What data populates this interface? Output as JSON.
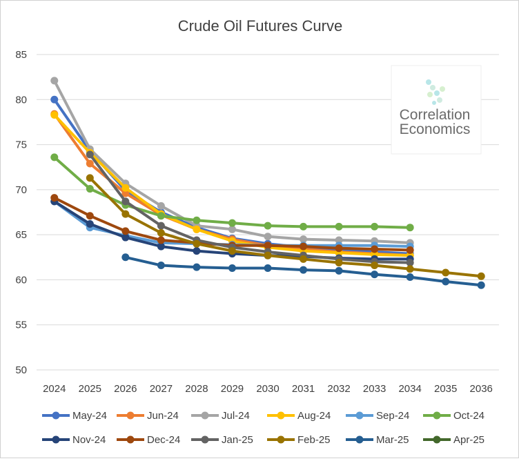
{
  "chart_data": {
    "type": "line",
    "title": "Crude Oil Futures Curve",
    "xlabel": "",
    "ylabel": "",
    "x": [
      2024,
      2025,
      2026,
      2027,
      2028,
      2029,
      2030,
      2031,
      2032,
      2033,
      2034,
      2035,
      2036
    ],
    "x_tick_labels": [
      "2024",
      "2025",
      "2026",
      "2027",
      "2028",
      "2029",
      "2030",
      "2031",
      "2032",
      "2033",
      "2034",
      "2035",
      "2036"
    ],
    "ylim": [
      50,
      85
    ],
    "y_ticks": [
      50,
      55,
      60,
      65,
      70,
      75,
      80,
      85
    ],
    "y_tick_labels": [
      "50",
      "55",
      "60",
      "65",
      "70",
      "75",
      "80",
      "85"
    ],
    "grid": "horizontal",
    "legend_position": "bottom",
    "series": [
      {
        "name": "May-24",
        "color": "#4472C4",
        "values": [
          80.0,
          74.3,
          69.9,
          67.5,
          65.8,
          64.6,
          64.0,
          63.6,
          63.3,
          63.1,
          62.9,
          null,
          null
        ]
      },
      {
        "name": "Jun-24",
        "color": "#ED7D31",
        "values": [
          78.4,
          72.9,
          69.6,
          67.2,
          65.6,
          64.5,
          63.8,
          63.4,
          63.1,
          62.9,
          62.7,
          null,
          null
        ]
      },
      {
        "name": "Jul-24",
        "color": "#A5A5A5",
        "values": [
          82.1,
          74.5,
          70.7,
          68.2,
          66.0,
          65.6,
          64.8,
          64.5,
          64.4,
          64.3,
          64.1,
          null,
          null
        ]
      },
      {
        "name": "Aug-24",
        "color": "#FFC000",
        "values": [
          78.3,
          74.1,
          70.2,
          67.3,
          65.6,
          64.3,
          63.6,
          63.2,
          63.0,
          62.8,
          62.7,
          null,
          null
        ]
      },
      {
        "name": "Sep-24",
        "color": "#5B9BD5",
        "values": [
          68.7,
          65.8,
          64.9,
          64.1,
          64.0,
          63.9,
          63.8,
          63.8,
          63.8,
          63.8,
          63.7,
          null,
          null
        ]
      },
      {
        "name": "Oct-24",
        "color": "#70AD47",
        "values": [
          73.6,
          70.1,
          68.3,
          67.1,
          66.6,
          66.3,
          66.0,
          65.9,
          65.9,
          65.9,
          65.8,
          null,
          null
        ]
      },
      {
        "name": "Nov-24",
        "color": "#264478",
        "values": [
          68.7,
          66.2,
          64.7,
          63.7,
          63.2,
          62.9,
          62.7,
          62.6,
          62.4,
          62.3,
          62.3,
          null,
          null
        ]
      },
      {
        "name": "Dec-24",
        "color": "#9E480E",
        "values": [
          69.1,
          67.1,
          65.4,
          64.4,
          64.1,
          63.8,
          63.8,
          63.7,
          63.5,
          63.4,
          63.3,
          null,
          null
        ]
      },
      {
        "name": "Jan-25",
        "color": "#636363",
        "values": [
          null,
          73.9,
          68.7,
          66.0,
          64.4,
          63.6,
          63.1,
          62.7,
          62.3,
          62.0,
          61.9,
          null,
          null
        ]
      },
      {
        "name": "Feb-25",
        "color": "#997300",
        "values": [
          null,
          71.3,
          67.3,
          65.2,
          64.0,
          63.2,
          62.7,
          62.3,
          61.9,
          61.6,
          61.2,
          60.8,
          60.4
        ]
      },
      {
        "name": "Mar-25",
        "color": "#255E91",
        "values": [
          null,
          null,
          62.5,
          61.6,
          61.4,
          61.3,
          61.3,
          61.1,
          61.0,
          60.6,
          60.3,
          59.8,
          59.4
        ]
      },
      {
        "name": "Apr-25",
        "color": "#43682B",
        "values": [
          null,
          null,
          null,
          null,
          null,
          null,
          null,
          null,
          null,
          null,
          null,
          null,
          null
        ]
      }
    ]
  },
  "watermark": {
    "line1": "Correlation",
    "line2": "Economics"
  }
}
